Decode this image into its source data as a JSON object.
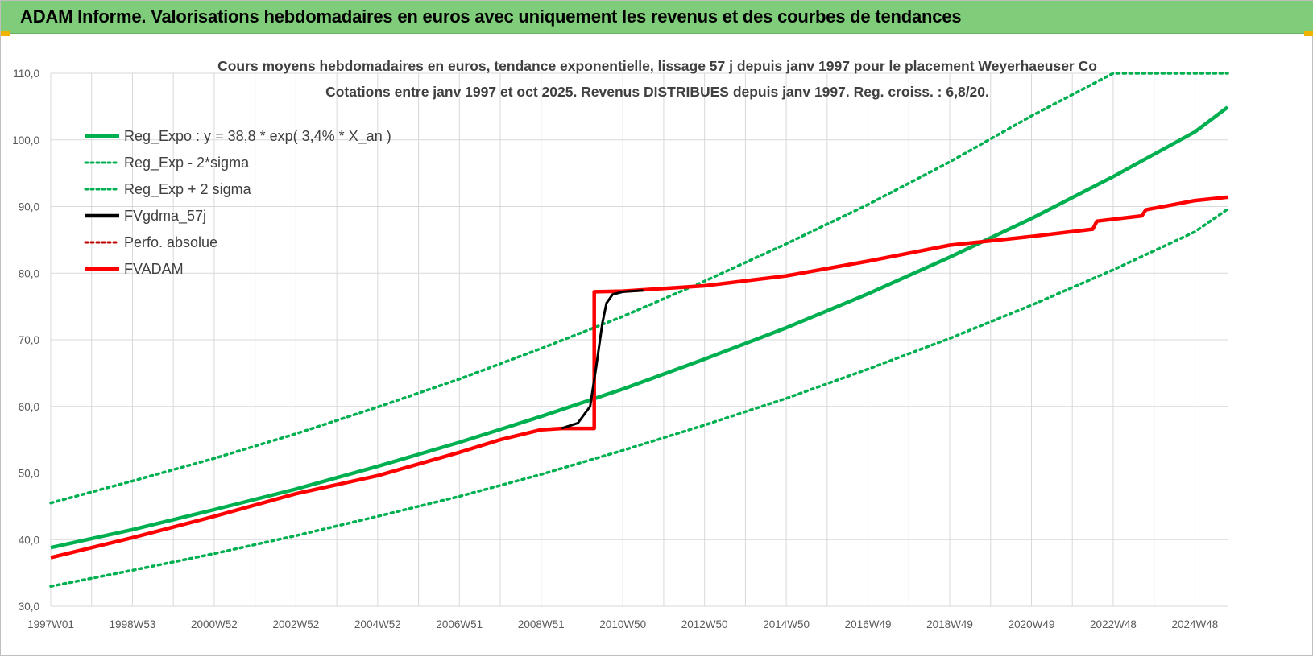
{
  "header": {
    "title": "ADAM Informe. Valorisations hebdomadaires en euros avec uniquement les revenus et des courbes de tendances"
  },
  "colors": {
    "header_bg": "#7fcc7a",
    "trend_green": "#00b050",
    "fvadam_red": "#ff0000",
    "fvgdma_black": "#000000",
    "perfo_red": "#c00000",
    "grid": "#d9d9d9"
  },
  "chart_data": {
    "type": "line",
    "title_line1": "Cours moyens hebdomadaires en euros, tendance exponentielle, lissage 57 j depuis janv 1997 pour le placement Weyerhaeuser Co",
    "title_line2": "Cotations entre janv 1997 et oct 2025. Revenus DISTRIBUES depuis janv 1997. Reg. croiss. : 6,8/20.",
    "x_range": [
      1997.0,
      2025.8
    ],
    "x_ticks": [
      {
        "label": "1997W01",
        "year": 1997.0
      },
      {
        "label": "1998W53",
        "year": 1999.0
      },
      {
        "label": "2000W52",
        "year": 2001.0
      },
      {
        "label": "2002W52",
        "year": 2003.0
      },
      {
        "label": "2004W52",
        "year": 2005.0
      },
      {
        "label": "2006W51",
        "year": 2007.0
      },
      {
        "label": "2008W51",
        "year": 2009.0
      },
      {
        "label": "2010W50",
        "year": 2011.0
      },
      {
        "label": "2012W50",
        "year": 2013.0
      },
      {
        "label": "2014W50",
        "year": 2015.0
      },
      {
        "label": "2016W49",
        "year": 2017.0
      },
      {
        "label": "2018W49",
        "year": 2019.0
      },
      {
        "label": "2020W49",
        "year": 2021.0
      },
      {
        "label": "2022W48",
        "year": 2023.0
      },
      {
        "label": "2024W48",
        "year": 2025.0
      }
    ],
    "ylim": [
      30,
      110
    ],
    "y_ticks": [
      "30,0",
      "40,0",
      "50,0",
      "60,0",
      "70,0",
      "80,0",
      "90,0",
      "100,0",
      "110,0"
    ],
    "y_tick_values": [
      30,
      40,
      50,
      60,
      70,
      80,
      90,
      100,
      110
    ],
    "grid": true,
    "legend_position": "top-left",
    "legend": [
      {
        "label": "Reg_Expo : y = 38,8 * exp( 3,4% *  X_an )",
        "color": "#00b050",
        "style": "solid"
      },
      {
        "label": "Reg_Exp - 2*sigma",
        "color": "#00b050",
        "style": "dotted"
      },
      {
        "label": "Reg_Exp + 2 sigma",
        "color": "#00b050",
        "style": "dotted"
      },
      {
        "label": "FVgdma_57j",
        "color": "#000000",
        "style": "solid"
      },
      {
        "label": "Perfo. absolue",
        "color": "#c00000",
        "style": "dotted"
      },
      {
        "label": "FVADAM",
        "color": "#ff0000",
        "style": "solid"
      }
    ],
    "series": [
      {
        "name": "Reg_Expo : y = 38,8 * exp( 3,4% *  X_an )",
        "x": [
          1997.0,
          1999.0,
          2001.0,
          2003.0,
          2005.0,
          2007.0,
          2009.0,
          2011.0,
          2013.0,
          2015.0,
          2017.0,
          2019.0,
          2021.0,
          2023.0,
          2025.0,
          2025.8
        ],
        "y": [
          38.8,
          41.5,
          44.5,
          47.6,
          51.0,
          54.6,
          58.5,
          62.6,
          67.1,
          71.8,
          76.9,
          82.4,
          88.2,
          94.5,
          101.2,
          104.9
        ]
      },
      {
        "name": "Reg_Exp - 2*sigma",
        "x": [
          1997.0,
          1999.0,
          2001.0,
          2003.0,
          2005.0,
          2007.0,
          2009.0,
          2011.0,
          2013.0,
          2015.0,
          2017.0,
          2019.0,
          2021.0,
          2023.0,
          2025.0,
          2025.8
        ],
        "y": [
          33.0,
          35.4,
          37.9,
          40.6,
          43.5,
          46.5,
          49.8,
          53.4,
          57.2,
          61.2,
          65.6,
          70.2,
          75.2,
          80.5,
          86.2,
          89.6
        ]
      },
      {
        "name": "Reg_Exp + 2 sigma",
        "x": [
          1997.0,
          1999.0,
          2001.0,
          2003.0,
          2005.0,
          2007.0,
          2009.0,
          2011.0,
          2013.0,
          2015.0,
          2017.0,
          2019.0,
          2021.0,
          2023.0,
          2025.0,
          2025.8
        ],
        "y": [
          45.5,
          48.8,
          52.2,
          55.9,
          59.9,
          64.1,
          68.7,
          73.5,
          78.8,
          84.4,
          90.3,
          96.7,
          103.6,
          110.0,
          110.0,
          110.0
        ]
      },
      {
        "name": "FVgdma_57j",
        "x": [
          2009.5,
          2009.9,
          2010.2,
          2010.35,
          2010.5,
          2010.6,
          2010.75,
          2011.0,
          2011.5
        ],
        "y": [
          56.7,
          57.5,
          60.0,
          66.0,
          72.5,
          75.5,
          76.8,
          77.2,
          77.4
        ]
      },
      {
        "name": "FVADAM",
        "x": [
          1997.0,
          1999.0,
          2001.0,
          2003.0,
          2005.0,
          2007.0,
          2008.0,
          2009.0,
          2009.5,
          2010.3,
          2010.3,
          2011.0,
          2013.0,
          2015.0,
          2017.0,
          2019.0,
          2021.0,
          2022.5,
          2022.6,
          2023.7,
          2023.8,
          2025.0,
          2025.8
        ],
        "y": [
          37.3,
          40.3,
          43.5,
          46.9,
          49.6,
          53.1,
          55.0,
          56.5,
          56.7,
          56.7,
          77.2,
          77.3,
          78.1,
          79.6,
          81.8,
          84.2,
          85.5,
          86.6,
          87.8,
          88.6,
          89.5,
          90.9,
          91.4
        ]
      }
    ]
  }
}
